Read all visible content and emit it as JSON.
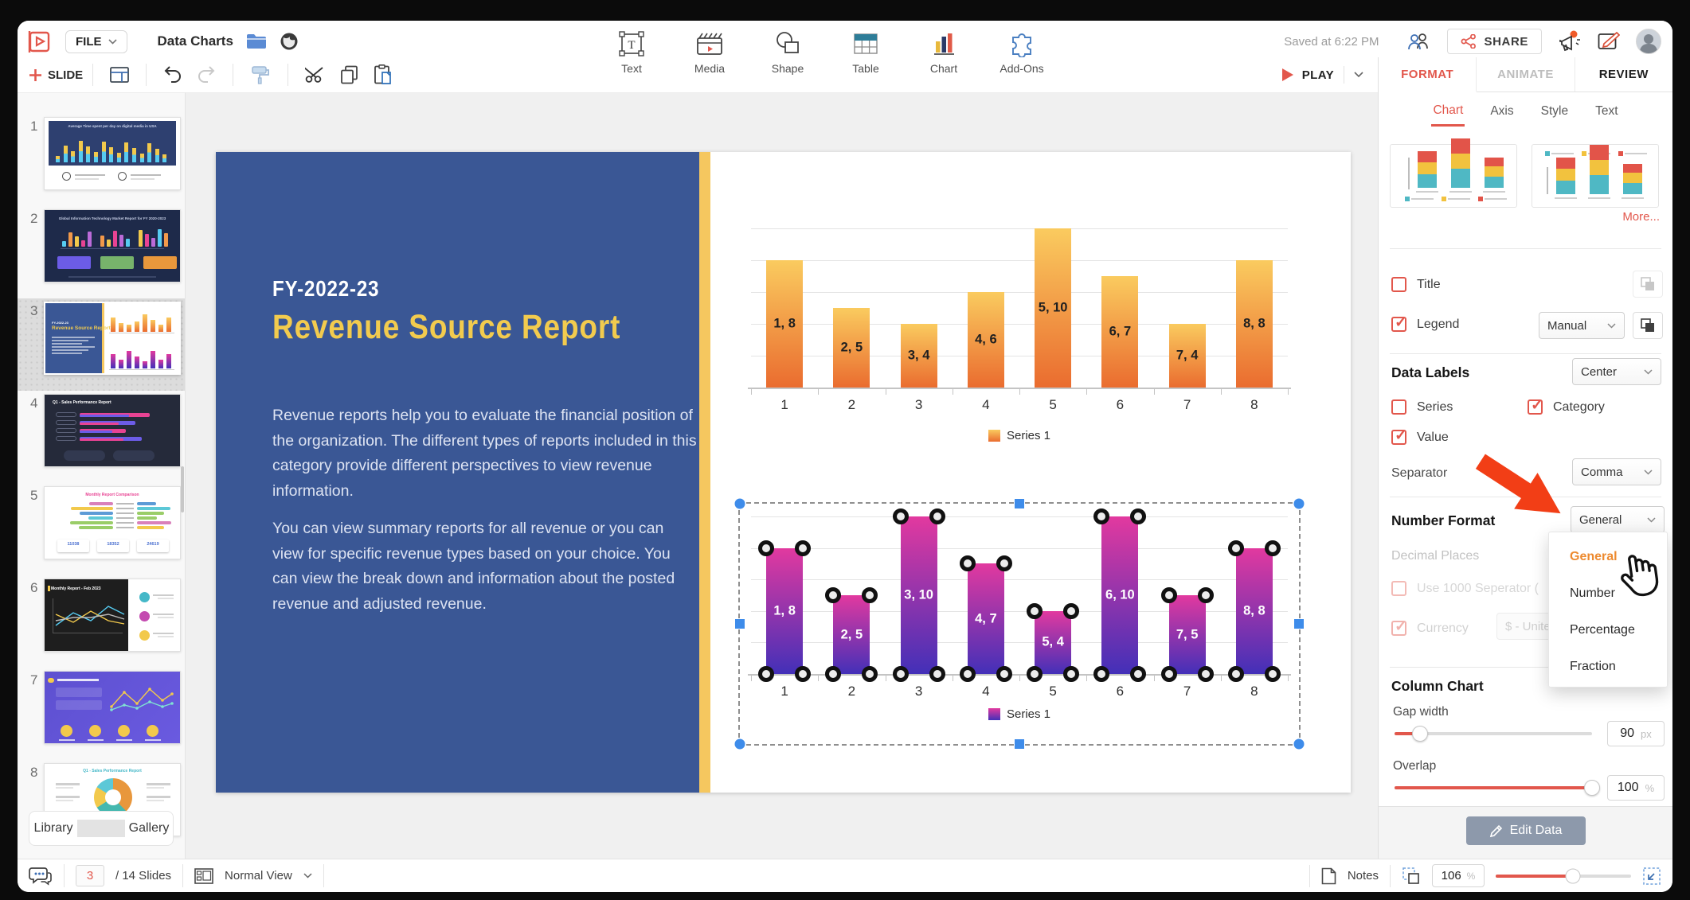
{
  "topbar": {
    "file_label": "FILE",
    "doc_title": "Data Charts",
    "saved_status": "Saved at 6:22 PM",
    "share_label": "SHARE"
  },
  "toolbar": {
    "slide_label": "SLIDE",
    "play_label": "PLAY",
    "insert_items": [
      {
        "label": "Text"
      },
      {
        "label": "Media"
      },
      {
        "label": "Shape"
      },
      {
        "label": "Table"
      },
      {
        "label": "Chart"
      },
      {
        "label": "Add-Ons"
      }
    ]
  },
  "panel": {
    "tabs": [
      "FORMAT",
      "ANIMATE",
      "REVIEW"
    ],
    "subtabs": [
      "Chart",
      "Axis",
      "Style",
      "Text"
    ],
    "more_label": "More...",
    "title_label": "Title",
    "legend_label": "Legend",
    "legend_value": "Manual",
    "data_labels_heading": "Data Labels",
    "data_labels_position": "Center",
    "series_label": "Series",
    "category_label": "Category",
    "value_label": "Value",
    "separator_label": "Separator",
    "separator_value": "Comma",
    "number_format_heading": "Number Format",
    "number_format_value": "General",
    "dropdown_options": [
      "General",
      "Number",
      "Percentage",
      "Fraction"
    ],
    "decimal_places_label": "Decimal Places",
    "thousand_separator_label": "Use 1000 Seperator (",
    "currency_label": "Currency",
    "currency_value": "$ - United",
    "column_chart_heading": "Column Chart",
    "gap_width_label": "Gap width",
    "gap_width_value": "90",
    "gap_width_unit": "px",
    "overlap_label": "Overlap",
    "overlap_value": "100",
    "overlap_unit": "%",
    "edit_data_label": "Edit Data",
    "accent_color": "#E2574C",
    "dropdown_highlight_color": "#ED8A2F"
  },
  "sidebar": {
    "library_label": "Library",
    "gallery_label": "Gallery",
    "slides": [
      {
        "num": "1",
        "variant": "digital-bars",
        "title": "Average Time spent per day on digital media in USA"
      },
      {
        "num": "2",
        "variant": "navy-cards",
        "title": "Global Information Technology Market Report for FY 2020-2023"
      },
      {
        "num": "3",
        "variant": "current",
        "title": ""
      },
      {
        "num": "4",
        "variant": "dark-hbars",
        "title": "Q1 - Sales Performance Report"
      },
      {
        "num": "5",
        "variant": "comparison",
        "title": "Monthly Report Comparison",
        "chips": [
          "11038",
          "18352",
          "24619"
        ]
      },
      {
        "num": "6",
        "variant": "dark-line",
        "title": "Monthly Report - Feb 2023"
      },
      {
        "num": "7",
        "variant": "purple-line",
        "title": ""
      },
      {
        "num": "8",
        "variant": "donut",
        "title": "Q1 - Sales Performance Report"
      }
    ]
  },
  "statusbar": {
    "current_slide": "3",
    "slides_total": "/ 14 Slides",
    "view_label": "Normal View",
    "notes_label": "Notes",
    "zoom_value": "106",
    "zoom_unit": "%"
  },
  "slide": {
    "kicker": "FY-2022-23",
    "title": "Revenue Source Report",
    "para1": "Revenue reports help you to evaluate the financial position of the organization. The different types of reports included in this category provide different perspectives to view revenue information.",
    "para2": "You can view summary reports for all revenue or you can view for specific revenue types based on your choice. You can view the break down and information about the posted revenue and adjusted revenue.",
    "panel_color": "#3A5795",
    "stripe_color": "#F5C75F",
    "title_color": "#F2CB4E"
  },
  "chart_data": [
    {
      "type": "bar",
      "name": "orange-column-chart",
      "categories": [
        "1",
        "2",
        "3",
        "4",
        "5",
        "6",
        "7",
        "8"
      ],
      "values": [
        8,
        5,
        4,
        6,
        10,
        7,
        4,
        8
      ],
      "data_labels": [
        "1, 8",
        "2, 5",
        "3, 4",
        "4, 6",
        "5, 10",
        "6, 7",
        "7, 4",
        "8, 8"
      ],
      "legend": "Series 1",
      "ylim": [
        0,
        10
      ],
      "gridline_step": 2,
      "grid": true,
      "legend_position": "bottom",
      "bar_gradient_top": "#FACB5F",
      "bar_gradient_bottom": "#EA6C2F",
      "label_color": "#202020",
      "selected": false
    },
    {
      "type": "bar",
      "name": "purple-column-chart",
      "categories": [
        "1",
        "2",
        "3",
        "4",
        "5",
        "6",
        "7",
        "8"
      ],
      "values": [
        8,
        5,
        10,
        7,
        4,
        10,
        5,
        8
      ],
      "data_labels": [
        "1, 8",
        "2, 5",
        "3, 10",
        "4, 7",
        "5, 4",
        "6, 10",
        "7, 5",
        "8, 8"
      ],
      "legend": "Series 1",
      "ylim": [
        0,
        10
      ],
      "gridline_step": 2,
      "grid": true,
      "legend_position": "bottom",
      "bar_gradient_top": "#E2399F",
      "bar_gradient_bottom": "#4330B8",
      "label_color": "#FFFFFF",
      "selected": true
    }
  ]
}
